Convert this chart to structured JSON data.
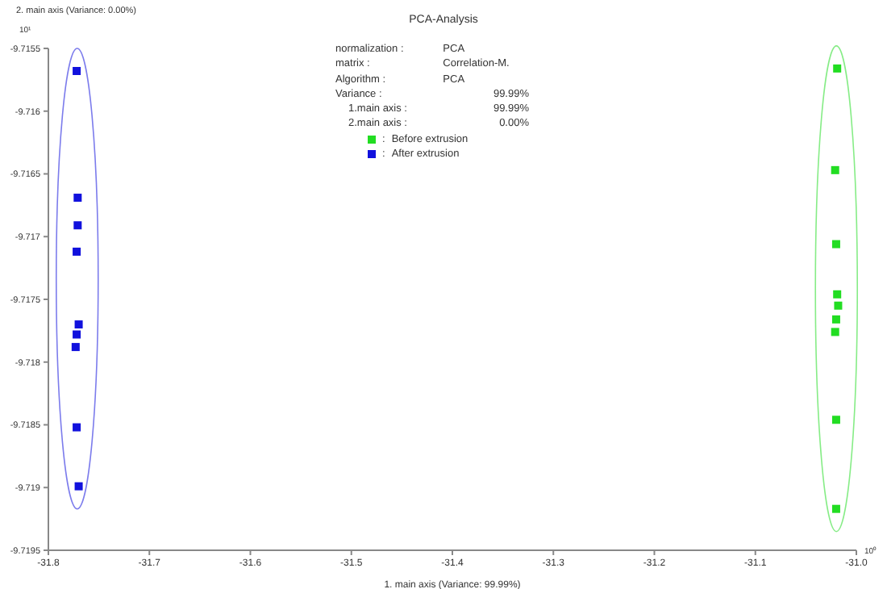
{
  "chart_data": {
    "type": "scatter",
    "title": "PCA-Analysis",
    "xlabel": "1. main axis (Variance: 99.99%)",
    "ylabel": "2. main axis (Variance: 0.00%)",
    "xlim": [
      -31.8,
      -31.0
    ],
    "xticks": [
      -31.8,
      -31.7,
      -31.6,
      -31.5,
      -31.4,
      -31.3,
      -31.2,
      -31.1,
      {
        "value": -31.0,
        "label": "-31.0"
      }
    ],
    "ylim": [
      -9.7195,
      -9.7155
    ],
    "yticks": [
      -9.7195,
      -9.719,
      -9.7185,
      -9.718,
      -9.7175,
      -9.717,
      -9.7165,
      -9.716,
      -9.7155
    ],
    "marker": "square",
    "grid": false,
    "legend": "top",
    "annotations": [
      "normalization  :",
      "PCA",
      "matrix  :",
      "Correlation-M.",
      "Algorithm  :",
      "PCA",
      "Variance  :",
      "99.99%",
      "1.main axis  :",
      "99.99%",
      "2.main axis  :",
      "0.00%",
      "10¹",
      "10⁰",
      ":",
      ":"
    ],
    "series": [
      {
        "name": "Before extrusion",
        "color": "#22dd22",
        "x": [
          -31.019,
          -31.021,
          -31.02,
          -31.019,
          -31.018,
          -31.02,
          -31.021,
          -31.02,
          -31.02
        ],
        "values": [
          -9.71566,
          -9.71647,
          -9.71706,
          -9.71746,
          -9.71755,
          -9.71766,
          -9.71776,
          -9.71846,
          -9.71917
        ]
      },
      {
        "name": "After extrusion",
        "color": "#1111dd",
        "x": [
          -31.772,
          -31.771,
          -31.771,
          -31.772,
          -31.77,
          -31.772,
          -31.773,
          -31.772,
          -31.77
        ],
        "values": [
          -9.71568,
          -9.71669,
          -9.71691,
          -9.71712,
          -9.7177,
          -9.71778,
          -9.71788,
          -9.71852,
          -9.71899
        ]
      }
    ]
  }
}
